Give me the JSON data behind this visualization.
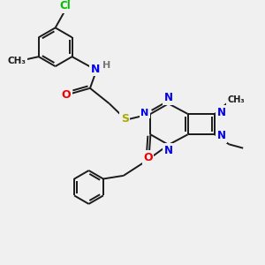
{
  "background_color": "#f0f0f0",
  "bond_color": "#1a1a1a",
  "atom_colors": {
    "N": "#0000ee",
    "O": "#ee0000",
    "S": "#aaaa00",
    "Cl": "#00bb00",
    "C": "#1a1a1a",
    "H": "#777777"
  },
  "figsize": [
    3.0,
    3.0
  ],
  "dpi": 100,
  "lw": 1.4
}
